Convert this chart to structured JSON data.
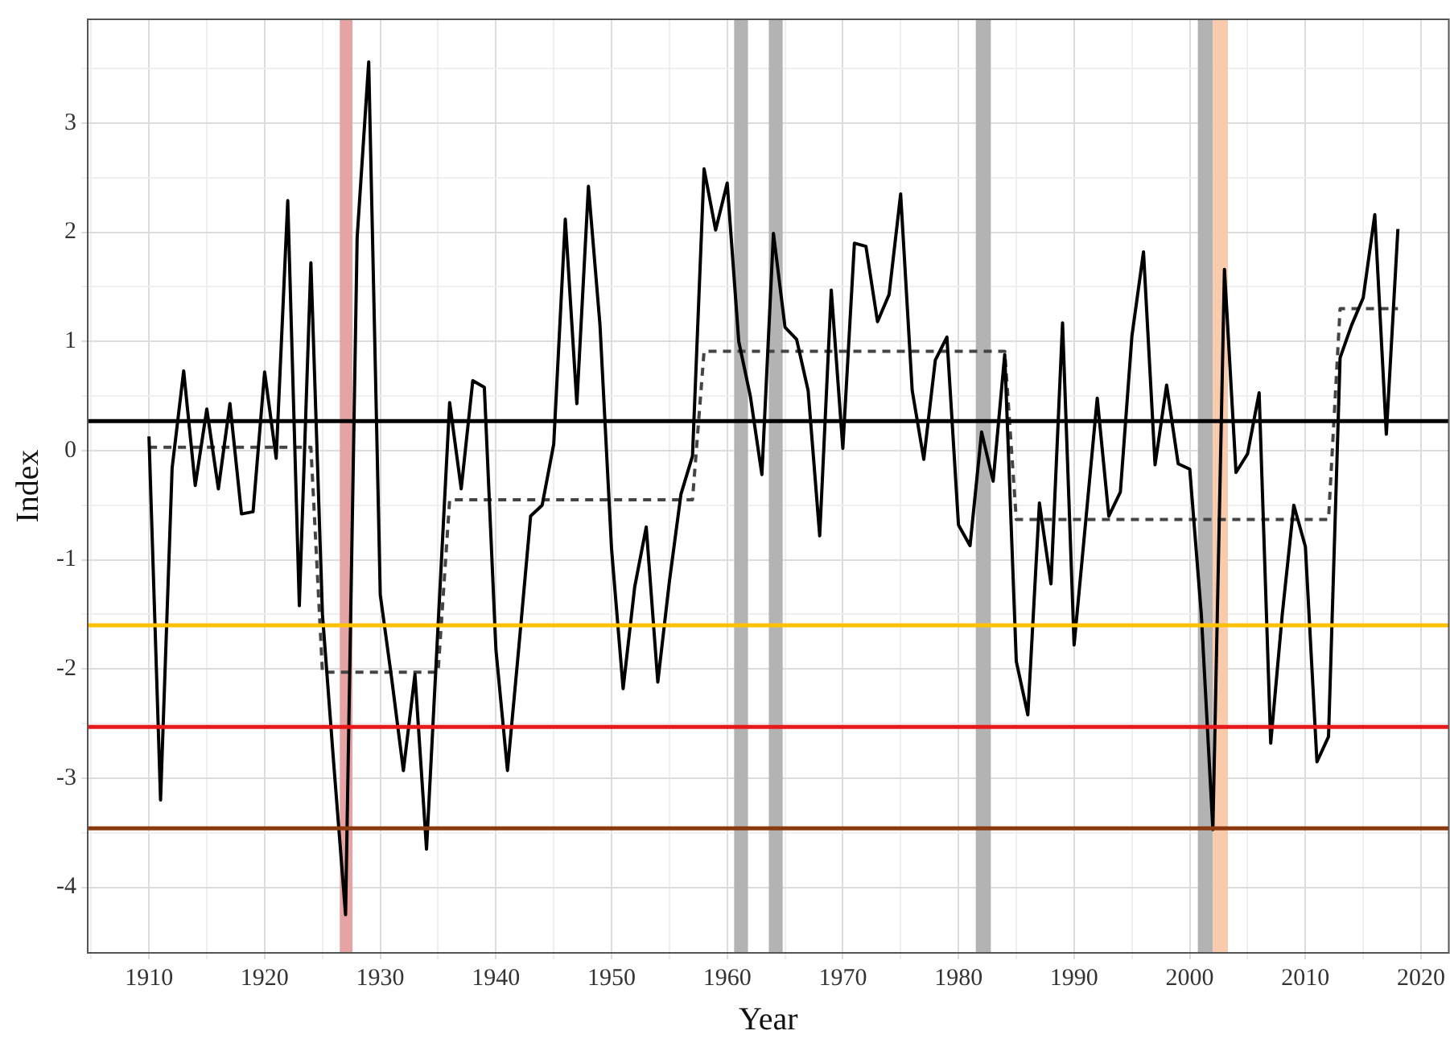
{
  "chart_data": {
    "type": "line",
    "xlabel": "Year",
    "ylabel": "Index",
    "xlim": [
      1904.7,
      2022.4
    ],
    "ylim": [
      -4.6,
      3.95
    ],
    "xticks": [
      {
        "value": 1905,
        "label": null
      },
      1910,
      {
        "value": 1915,
        "label": null
      },
      1920,
      {
        "value": 1925,
        "label": null
      },
      1930,
      {
        "value": 1935,
        "label": null
      },
      1940,
      {
        "value": 1945,
        "label": null
      },
      1950,
      {
        "value": 1955,
        "label": null
      },
      1960,
      {
        "value": 1965,
        "label": null
      },
      1970,
      {
        "value": 1975,
        "label": null
      },
      1980,
      {
        "value": 1985,
        "label": null
      },
      1990,
      {
        "value": 1995,
        "label": null
      },
      2000,
      {
        "value": 2005,
        "label": null
      },
      2010,
      {
        "value": 2015,
        "label": null
      },
      2020
    ],
    "yticks": [
      -4,
      {
        "value": -3.5,
        "label": null
      },
      -3,
      {
        "value": -2.5,
        "label": null
      },
      -2,
      {
        "value": -1.5,
        "label": null
      },
      -1,
      {
        "value": -0.5,
        "label": null
      },
      0,
      {
        "value": 0.5,
        "label": null
      },
      1,
      {
        "value": 1.5,
        "label": null
      },
      2,
      {
        "value": 2.5,
        "label": null
      },
      3,
      {
        "value": 3.5,
        "label": null
      }
    ],
    "grid": true,
    "legend": false,
    "marker": "none",
    "series": [
      {
        "type": "line",
        "color": "#000000",
        "line_style": "solid",
        "x": [
          1910,
          1911,
          1912,
          1913,
          1914,
          1915,
          1916,
          1917,
          1918,
          1919,
          1920,
          1921,
          1922,
          1923,
          1924,
          1925,
          1926,
          1927,
          1928,
          1929,
          1930,
          1931,
          1932,
          1933,
          1934,
          1935,
          1936,
          1937,
          1938,
          1939,
          1940,
          1941,
          1942,
          1943,
          1944,
          1945,
          1946,
          1947,
          1948,
          1949,
          1950,
          1951,
          1952,
          1953,
          1954,
          1955,
          1956,
          1957,
          1958,
          1959,
          1960,
          1961,
          1962,
          1963,
          1964,
          1965,
          1966,
          1967,
          1968,
          1969,
          1970,
          1971,
          1972,
          1973,
          1974,
          1975,
          1976,
          1977,
          1978,
          1979,
          1980,
          1981,
          1982,
          1983,
          1984,
          1985,
          1986,
          1987,
          1988,
          1989,
          1990,
          1991,
          1992,
          1993,
          1994,
          1995,
          1996,
          1997,
          1998,
          1999,
          2000,
          2001,
          2002,
          2003,
          2004,
          2005,
          2006,
          2007,
          2008,
          2009,
          2010,
          2011,
          2012,
          2013,
          2014,
          2015,
          2016,
          2017,
          2018
        ],
        "values": [
          0.13,
          -3.2,
          -0.16,
          0.73,
          -0.32,
          0.38,
          -0.35,
          0.43,
          -0.58,
          -0.56,
          0.72,
          -0.07,
          2.29,
          -1.42,
          1.72,
          -1.5,
          -2.9,
          -4.25,
          1.95,
          3.56,
          -1.32,
          -2.1,
          -2.93,
          -2.05,
          -3.65,
          -1.6,
          0.44,
          -0.35,
          0.64,
          0.58,
          -1.82,
          -2.93,
          -1.78,
          -0.6,
          -0.5,
          0.06,
          2.12,
          0.43,
          2.42,
          1.15,
          -0.9,
          -2.18,
          -1.25,
          -0.7,
          -2.12,
          -1.2,
          -0.4,
          -0.05,
          2.58,
          2.02,
          2.45,
          1.0,
          0.5,
          -0.22,
          1.99,
          1.13,
          1.02,
          0.55,
          -0.78,
          1.47,
          0.02,
          1.9,
          1.87,
          1.18,
          1.43,
          2.35,
          0.55,
          -0.08,
          0.83,
          1.04,
          -0.68,
          -0.87,
          0.17,
          -0.28,
          0.88,
          -1.93,
          -2.42,
          -0.48,
          -1.22,
          1.17,
          -1.78,
          -0.65,
          0.48,
          -0.6,
          -0.38,
          1.05,
          1.82,
          -0.13,
          0.6,
          -0.12,
          -0.17,
          -1.5,
          -3.47,
          1.66,
          -0.2,
          -0.03,
          0.53,
          -2.68,
          -1.5,
          -0.5,
          -0.88,
          -2.85,
          -2.62,
          0.85,
          1.15,
          1.4,
          2.16,
          0.15,
          2.03
        ]
      },
      {
        "type": "line",
        "color": "#444444",
        "line_style": "dashed",
        "x": [
          1910,
          1924,
          1925,
          1935,
          1936,
          1957,
          1958,
          1984,
          1985,
          2012,
          2013,
          2018
        ],
        "values": [
          0.03,
          0.03,
          -2.03,
          -2.03,
          -0.45,
          -0.45,
          0.91,
          0.91,
          -0.63,
          -0.63,
          1.3,
          1.3
        ]
      }
    ],
    "ref_lines": [
      {
        "axis": "y",
        "value": 0.27,
        "color": "#000000"
      },
      {
        "axis": "y",
        "value": -1.6,
        "color": "#ffc000"
      },
      {
        "axis": "y",
        "value": -2.53,
        "color": "#e8191b"
      },
      {
        "axis": "y",
        "value": -3.46,
        "color": "#8b3a0f"
      }
    ],
    "bands": [
      {
        "axis": "x",
        "from": 1926.5,
        "to": 1927.6,
        "color": "#e6a3a3"
      },
      {
        "axis": "x",
        "from": 1960.6,
        "to": 1961.8,
        "color": "#b3b3b3"
      },
      {
        "axis": "x",
        "from": 1963.6,
        "to": 1964.8,
        "color": "#b3b3b3"
      },
      {
        "axis": "x",
        "from": 1981.5,
        "to": 1982.8,
        "color": "#b3b3b3"
      },
      {
        "axis": "x",
        "from": 2000.7,
        "to": 2002,
        "color": "#b3b3b3"
      },
      {
        "axis": "x",
        "from": 2002,
        "to": 2003.3,
        "color": "#f9cbad"
      }
    ]
  }
}
